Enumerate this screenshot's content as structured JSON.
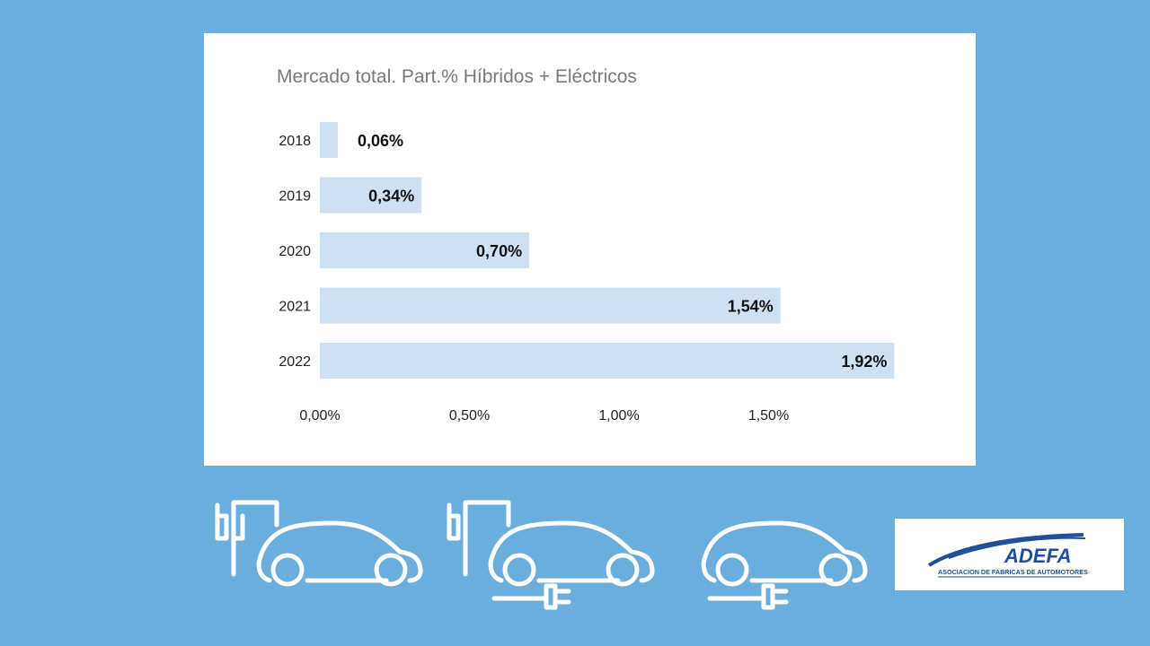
{
  "chart_data": {
    "type": "bar",
    "orientation": "horizontal",
    "title": "Mercado total. Part.% Híbridos + Eléctricos",
    "categories": [
      "2018",
      "2019",
      "2020",
      "2021",
      "2022"
    ],
    "values": [
      0.06,
      0.34,
      0.7,
      1.54,
      1.92
    ],
    "value_labels": [
      "0,06%",
      "0,34%",
      "0,70%",
      "1,54%",
      "1,92%"
    ],
    "x_ticks": [
      0,
      0.5,
      1.0,
      1.5
    ],
    "x_tick_labels": [
      "0,00%",
      "0,50%",
      "1,00%",
      "1,50%"
    ],
    "xlim": [
      0,
      2.0
    ],
    "grid": false,
    "legend": "none",
    "bar_color": "#cfe0f3"
  },
  "colors": {
    "background": "#6aaedd",
    "card": "#ffffff",
    "icon_stroke": "#ffffff"
  },
  "icons": [
    "ev-charger-car-icon",
    "plug-in-hybrid-car-icon",
    "electric-car-plug-icon"
  ],
  "logo": {
    "brand": "ADEFA",
    "tagline": "ASOCIACION DE FABRICAS DE AUTOMOTORES",
    "color": "#1f4e9a"
  }
}
